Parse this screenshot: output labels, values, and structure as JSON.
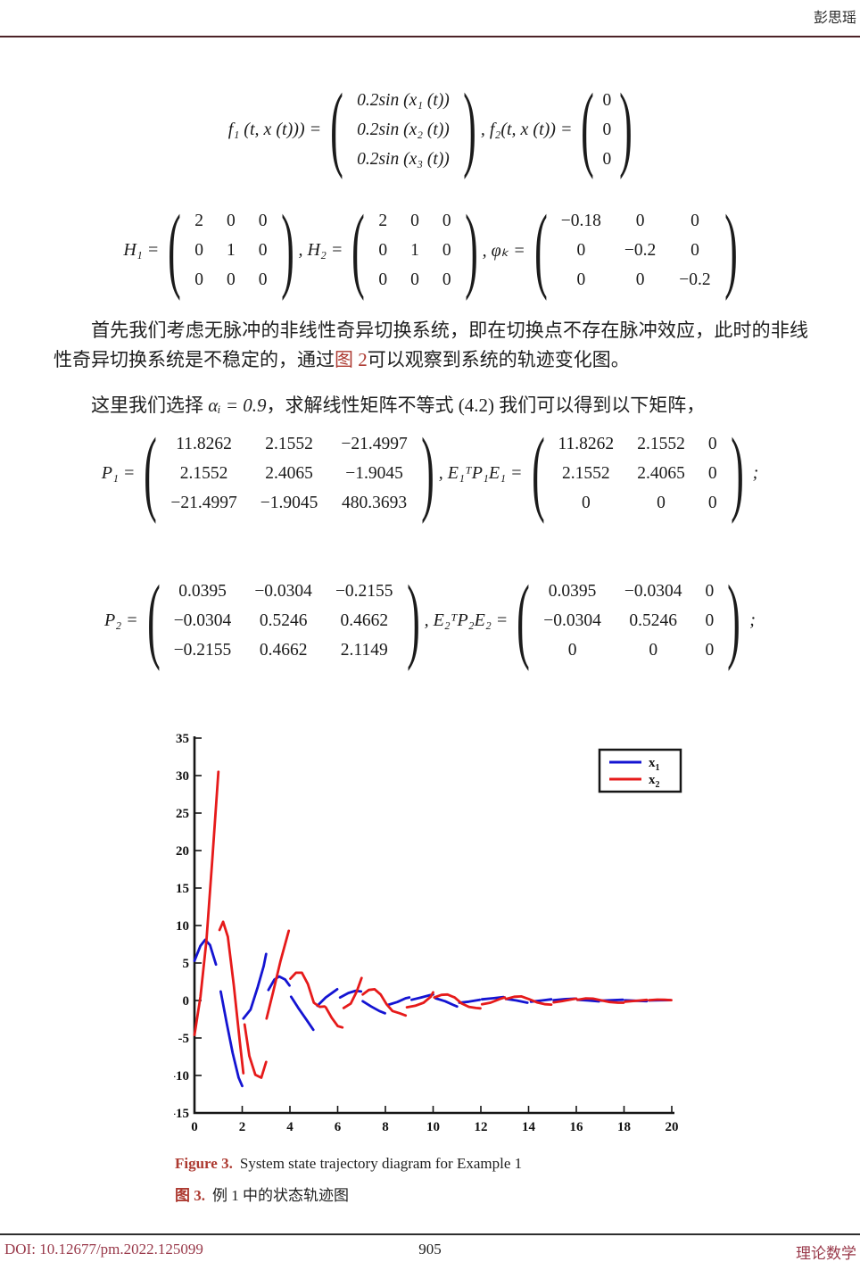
{
  "header": {
    "author": "彭思瑶"
  },
  "footer": {
    "doi": "DOI: 10.12677/pm.2022.125099",
    "page": "905",
    "journal": "理论数学"
  },
  "colors": {
    "accent_wine": "#99394a",
    "accent_brick": "#ad3a31",
    "rule_header": "#4c2327",
    "rule_footer": "#2e2e2e",
    "series_blue": "#1414d2",
    "series_red": "#e61a1a"
  },
  "para1": {
    "before": "首先我们考虑无脉冲的非线性奇异切换系统，即在切换点不存在脉冲效应，此时的非线性奇异切换系统是不稳定的，通过",
    "link": "图 2",
    "after": "可以观察到系统的轨迹变化图。"
  },
  "para2": {
    "before": "这里我们选择 ",
    "math": "αᵢ = 0.9",
    "after": "，求解线性矩阵不等式 (4.2) 我们可以得到以下矩阵，"
  },
  "equations": [
    {
      "name": "eq-f1-f2",
      "parts": [
        {
          "t": "text",
          "v": "f₁ (t, x (t))) = "
        },
        {
          "t": "matrix",
          "italic": true,
          "rows": [
            [
              "0.2sin (x₁ (t))"
            ],
            [
              "0.2sin (x₂ (t))"
            ],
            [
              "0.2sin (x₃ (t))"
            ]
          ]
        },
        {
          "t": "text",
          "v": ", f₂(t, x (t)) = "
        },
        {
          "t": "matrix",
          "vector": true,
          "rows": [
            [
              "0"
            ],
            [
              "0"
            ],
            [
              "0"
            ]
          ]
        }
      ]
    },
    {
      "name": "eq-H-phi",
      "parts": [
        {
          "t": "text",
          "v": "H₁ = "
        },
        {
          "t": "matrix",
          "rows": [
            [
              "2",
              "0",
              "0"
            ],
            [
              "0",
              "1",
              "0"
            ],
            [
              "0",
              "0",
              "0"
            ]
          ]
        },
        {
          "t": "text",
          "v": ", H₂ = "
        },
        {
          "t": "matrix",
          "rows": [
            [
              "2",
              "0",
              "0"
            ],
            [
              "0",
              "1",
              "0"
            ],
            [
              "0",
              "0",
              "0"
            ]
          ]
        },
        {
          "t": "text",
          "v": ", φₖ = "
        },
        {
          "t": "matrix",
          "rows": [
            [
              "−0.18",
              "0",
              "0"
            ],
            [
              "0",
              "−0.2",
              "0"
            ],
            [
              "0",
              "0",
              "−0.2"
            ]
          ]
        }
      ]
    },
    {
      "name": "eq-P1",
      "parts": [
        {
          "t": "text",
          "v": "P₁ = "
        },
        {
          "t": "matrix",
          "rows": [
            [
              "11.8262",
              "2.1552",
              "−21.4997"
            ],
            [
              "2.1552",
              "2.4065",
              "−1.9045"
            ],
            [
              "−21.4997",
              "−1.9045",
              "480.3693"
            ]
          ]
        },
        {
          "t": "text",
          "v": ", E₁ᵀP₁E₁ = "
        },
        {
          "t": "matrix",
          "rows": [
            [
              "11.8262",
              "2.1552",
              "0"
            ],
            [
              "2.1552",
              "2.4065",
              "0"
            ],
            [
              "0",
              "0",
              "0"
            ]
          ]
        },
        {
          "t": "text",
          "v": " ;"
        }
      ]
    },
    {
      "name": "eq-P2",
      "parts": [
        {
          "t": "text",
          "v": "P₂ = "
        },
        {
          "t": "matrix",
          "rows": [
            [
              "0.0395",
              "−0.0304",
              "−0.2155"
            ],
            [
              "−0.0304",
              "0.5246",
              "0.4662"
            ],
            [
              "−0.2155",
              "0.4662",
              "2.1149"
            ]
          ]
        },
        {
          "t": "text",
          "v": ", E₂ᵀP₂E₂ = "
        },
        {
          "t": "matrix",
          "rows": [
            [
              "0.0395",
              "−0.0304",
              "0"
            ],
            [
              "−0.0304",
              "0.5246",
              "0"
            ],
            [
              "0",
              "0",
              "0"
            ]
          ]
        },
        {
          "t": "text",
          "v": " ;"
        }
      ]
    }
  ],
  "figure_caption": {
    "label_en": "Figure 3.",
    "text_en": "System state trajectory diagram for Example 1",
    "label_zh": "图 3.",
    "text_zh": "例 1 中的状态轨迹图"
  },
  "chart_data": {
    "type": "line",
    "title": "",
    "xlabel": "",
    "ylabel": "",
    "xlim": [
      0,
      20
    ],
    "ylim": [
      -15,
      35
    ],
    "xticks": [
      "0",
      "2",
      "4",
      "6",
      "8",
      "10",
      "12",
      "14",
      "16",
      "18",
      "20"
    ],
    "yticks": [
      "35",
      "30",
      "25",
      "20",
      "15",
      "10",
      "5",
      "0",
      "-5",
      "-10",
      "-15"
    ],
    "grid": false,
    "legend_position": "top-right",
    "legend": [
      {
        "name": "x",
        "sub": "1",
        "color": "#1414d2"
      },
      {
        "name": "x",
        "sub": "2",
        "color": "#e61a1a"
      }
    ],
    "series": [
      {
        "name": "x1",
        "color": "#1414d2",
        "segments": [
          [
            [
              0,
              5.3
            ],
            [
              0.25,
              7.3
            ],
            [
              0.45,
              8.1
            ],
            [
              0.65,
              7.4
            ],
            [
              0.9,
              4.8
            ]
          ],
          [
            [
              1.1,
              1.2
            ],
            [
              1.35,
              -3.0
            ],
            [
              1.6,
              -7.0
            ],
            [
              1.85,
              -10.3
            ],
            [
              2.0,
              -11.4
            ]
          ],
          [
            [
              2.05,
              -2.4
            ],
            [
              2.35,
              -1.2
            ],
            [
              2.65,
              1.8
            ],
            [
              2.9,
              4.6
            ],
            [
              3.0,
              6.2
            ]
          ],
          [
            [
              3.1,
              1.4
            ],
            [
              3.35,
              2.8
            ],
            [
              3.55,
              3.2
            ],
            [
              3.8,
              2.8
            ],
            [
              3.98,
              2.0
            ]
          ],
          [
            [
              4.05,
              0.5
            ],
            [
              4.35,
              -1.0
            ],
            [
              4.7,
              -2.6
            ],
            [
              4.98,
              -3.9
            ]
          ],
          [
            [
              5.15,
              -0.7
            ],
            [
              5.5,
              0.4
            ],
            [
              5.8,
              1.1
            ],
            [
              5.98,
              1.5
            ]
          ],
          [
            [
              6.1,
              0.4
            ],
            [
              6.45,
              1.0
            ],
            [
              6.75,
              1.3
            ],
            [
              6.98,
              1.2
            ]
          ],
          [
            [
              7.05,
              -0.1
            ],
            [
              7.4,
              -0.8
            ],
            [
              7.75,
              -1.4
            ],
            [
              7.98,
              -1.7
            ]
          ],
          [
            [
              8.1,
              -0.6
            ],
            [
              8.5,
              -0.2
            ],
            [
              8.85,
              0.3
            ],
            [
              9.0,
              0.4
            ]
          ],
          [
            [
              9.1,
              0.1
            ],
            [
              9.5,
              0.4
            ],
            [
              9.85,
              0.7
            ],
            [
              10.0,
              0.8
            ]
          ],
          [
            [
              10.1,
              0.3
            ],
            [
              10.5,
              -0.1
            ],
            [
              10.85,
              -0.6
            ],
            [
              11.0,
              -0.8
            ]
          ],
          [
            [
              11.1,
              -0.3
            ],
            [
              11.5,
              -0.15
            ],
            [
              11.95,
              0.1
            ]
          ],
          [
            [
              12.05,
              0.15
            ],
            [
              12.5,
              0.3
            ],
            [
              12.95,
              0.45
            ]
          ],
          [
            [
              13.05,
              0.2
            ],
            [
              13.5,
              0.0
            ],
            [
              13.95,
              -0.3
            ]
          ],
          [
            [
              14.1,
              -0.15
            ],
            [
              14.55,
              0.0
            ],
            [
              14.95,
              0.15
            ]
          ],
          [
            [
              15.05,
              0.05
            ],
            [
              15.5,
              0.18
            ],
            [
              15.95,
              0.25
            ]
          ],
          [
            [
              16.05,
              0.1
            ],
            [
              16.5,
              0.0
            ],
            [
              16.95,
              -0.12
            ]
          ],
          [
            [
              17.05,
              -0.02
            ],
            [
              17.5,
              0.05
            ],
            [
              17.95,
              0.1
            ]
          ],
          [
            [
              18.05,
              0.02
            ],
            [
              18.5,
              -0.04
            ],
            [
              18.95,
              -0.08
            ]
          ],
          [
            [
              19.05,
              0.0
            ],
            [
              19.5,
              0.03
            ],
            [
              19.95,
              0.05
            ]
          ]
        ]
      },
      {
        "name": "x2",
        "color": "#e61a1a",
        "segments": [
          [
            [
              0,
              -4.6
            ],
            [
              0.25,
              0.5
            ],
            [
              0.5,
              8.0
            ],
            [
              0.75,
              19.0
            ],
            [
              1.0,
              30.5
            ]
          ],
          [
            [
              1.05,
              9.4
            ],
            [
              1.2,
              10.5
            ],
            [
              1.4,
              8.5
            ],
            [
              1.65,
              2.0
            ],
            [
              1.9,
              -5.5
            ],
            [
              2.05,
              -9.7
            ]
          ],
          [
            [
              2.1,
              -3.2
            ],
            [
              2.3,
              -7.4
            ],
            [
              2.55,
              -9.9
            ],
            [
              2.8,
              -10.3
            ],
            [
              3.0,
              -8.2
            ]
          ],
          [
            [
              3.02,
              -2.4
            ],
            [
              3.3,
              1.2
            ],
            [
              3.6,
              5.2
            ],
            [
              3.95,
              9.3
            ]
          ],
          [
            [
              4.02,
              2.9
            ],
            [
              4.25,
              3.7
            ],
            [
              4.5,
              3.7
            ],
            [
              4.75,
              2.2
            ],
            [
              5.0,
              -0.3
            ],
            [
              5.25,
              -0.85
            ],
            [
              5.45,
              -0.8
            ]
          ],
          [
            [
              5.5,
              -0.9
            ],
            [
              5.75,
              -2.3
            ],
            [
              6.0,
              -3.4
            ],
            [
              6.2,
              -3.6
            ]
          ],
          [
            [
              6.25,
              -1.0
            ],
            [
              6.55,
              -0.4
            ],
            [
              6.8,
              1.2
            ],
            [
              7.0,
              3.0
            ]
          ],
          [
            [
              7.05,
              0.8
            ],
            [
              7.3,
              1.4
            ],
            [
              7.55,
              1.5
            ],
            [
              7.8,
              0.8
            ],
            [
              8.05,
              -0.5
            ],
            [
              8.3,
              -1.4
            ],
            [
              8.6,
              -1.7
            ],
            [
              8.85,
              -2.0
            ]
          ],
          [
            [
              8.9,
              -0.9
            ],
            [
              9.25,
              -0.7
            ],
            [
              9.6,
              -0.3
            ],
            [
              9.9,
              0.5
            ],
            [
              10.0,
              1.1
            ]
          ],
          [
            [
              10.05,
              0.4
            ],
            [
              10.35,
              0.75
            ],
            [
              10.6,
              0.8
            ],
            [
              10.9,
              0.4
            ],
            [
              11.2,
              -0.4
            ],
            [
              11.5,
              -0.85
            ],
            [
              11.8,
              -1.0
            ],
            [
              11.98,
              -1.05
            ]
          ],
          [
            [
              12.05,
              -0.5
            ],
            [
              12.4,
              -0.3
            ],
            [
              12.8,
              0.2
            ],
            [
              13.0,
              0.4
            ]
          ],
          [
            [
              13.05,
              0.2
            ],
            [
              13.4,
              0.5
            ],
            [
              13.7,
              0.55
            ],
            [
              14.0,
              0.2
            ],
            [
              14.35,
              -0.25
            ],
            [
              14.7,
              -0.5
            ],
            [
              14.95,
              -0.55
            ]
          ],
          [
            [
              15.05,
              -0.25
            ],
            [
              15.4,
              -0.1
            ],
            [
              15.8,
              0.15
            ],
            [
              16.0,
              0.25
            ]
          ],
          [
            [
              16.05,
              0.1
            ],
            [
              16.4,
              0.28
            ],
            [
              16.7,
              0.25
            ],
            [
              17.0,
              0.05
            ],
            [
              17.4,
              -0.2
            ],
            [
              17.75,
              -0.3
            ],
            [
              17.98,
              -0.3
            ]
          ],
          [
            [
              18.05,
              -0.15
            ],
            [
              18.5,
              -0.05
            ],
            [
              18.95,
              0.08
            ]
          ],
          [
            [
              19.05,
              0.04
            ],
            [
              19.4,
              0.12
            ],
            [
              19.7,
              0.1
            ],
            [
              19.98,
              0.05
            ]
          ]
        ]
      }
    ]
  }
}
